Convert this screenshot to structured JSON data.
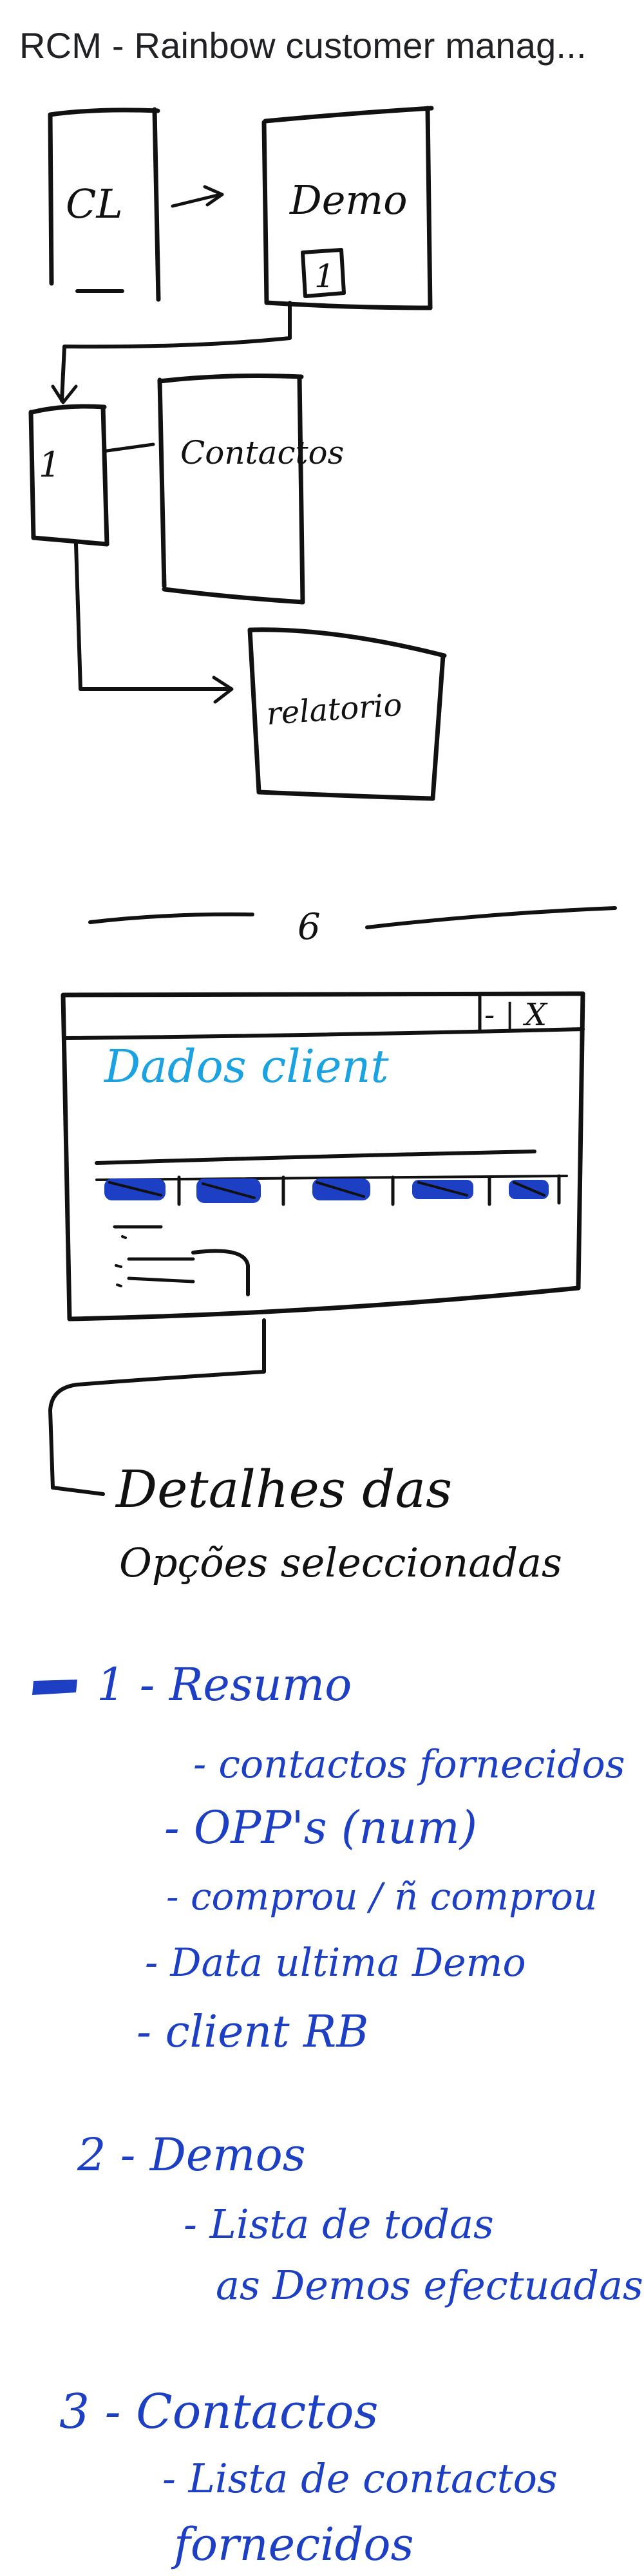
{
  "page": {
    "title": "RCM - Rainbow customer manag..."
  },
  "diagram": {
    "box_cl": "CL",
    "box_demo": "Demo",
    "box_demo_sub": "1",
    "box_small": "1",
    "box_contactos": "Contactos",
    "box_relatorio": "relatorio",
    "separator_label": "6",
    "window_controls": "- | X",
    "window_title": "Dados client",
    "details_line1": "Detalhes das",
    "details_line2": "Opções seleccionadas"
  },
  "notes": {
    "section1": {
      "title": "1 - Resumo",
      "items": [
        "- contactos fornecidos",
        "- OPP's (num)",
        "- comprou / ñ comprou",
        "- Data ultima Demo",
        "- client RB"
      ]
    },
    "section2": {
      "title": "2 - Demos",
      "items": [
        "- Lista de todas",
        "as Demos efectuadas"
      ]
    },
    "section3": {
      "title": "3 - Contactos",
      "items": [
        "- Lista de contactos",
        "fornecidos"
      ]
    }
  },
  "colors": {
    "ink": "#111111",
    "pen_blue": "#1d3fc4",
    "light_blue": "#1aa3e0"
  }
}
